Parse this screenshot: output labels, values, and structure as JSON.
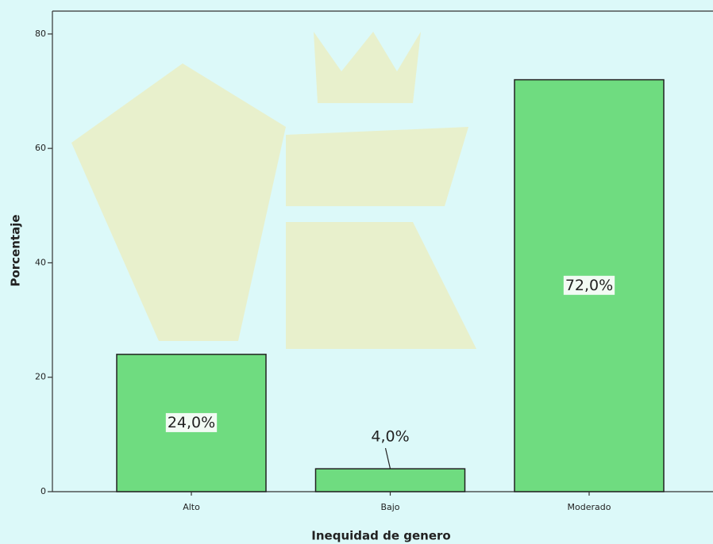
{
  "chart_data": {
    "type": "bar",
    "x_label": "Inequidad de genero",
    "y_label": "Porcentaje",
    "categories": [
      "Alto",
      "Bajo",
      "Moderado"
    ],
    "values": [
      24,
      4,
      72
    ],
    "value_labels": [
      "24,0%",
      "4,0%",
      "72,0%"
    ],
    "color": "#6fdc80",
    "ylim": [
      0,
      84
    ],
    "yticks": [
      0,
      20,
      40,
      60,
      80
    ]
  }
}
